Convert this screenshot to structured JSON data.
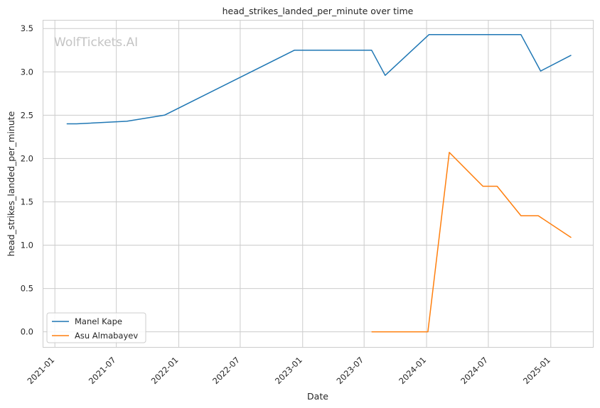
{
  "chart_data": {
    "type": "line",
    "title": "head_strikes_landed_per_minute over time",
    "xlabel": "Date",
    "ylabel": "head_strikes_landed_per_minute",
    "watermark": "WolfTickets.AI",
    "x_axis_type": "date",
    "xlim": [
      "2020-11-26",
      "2025-05-05"
    ],
    "ylim": [
      -0.175,
      3.6
    ],
    "x_ticks": [
      "2021-01",
      "2021-07",
      "2022-01",
      "2022-07",
      "2023-01",
      "2023-07",
      "2024-01",
      "2024-07",
      "2025-01"
    ],
    "y_ticks": [
      "0.0",
      "0.5",
      "1.0",
      "1.5",
      "2.0",
      "2.5",
      "3.0",
      "3.5"
    ],
    "grid": true,
    "legend_position": "lower-left",
    "series": [
      {
        "name": "Manel Kape",
        "color": "#1f77b4",
        "points": [
          {
            "x": "2021-02-06",
            "y": 2.4
          },
          {
            "x": "2021-03-06",
            "y": 2.4
          },
          {
            "x": "2021-08-01",
            "y": 2.43
          },
          {
            "x": "2021-11-20",
            "y": 2.5
          },
          {
            "x": "2022-12-08",
            "y": 3.25
          },
          {
            "x": "2023-07-23",
            "y": 3.25
          },
          {
            "x": "2023-09-01",
            "y": 2.96
          },
          {
            "x": "2024-01-08",
            "y": 3.43
          },
          {
            "x": "2024-10-05",
            "y": 3.43
          },
          {
            "x": "2024-12-02",
            "y": 3.01
          },
          {
            "x": "2025-03-01",
            "y": 3.19
          }
        ]
      },
      {
        "name": "Asu Almabayev",
        "color": "#ff7f0e",
        "points": [
          {
            "x": "2023-07-24",
            "y": 0.0
          },
          {
            "x": "2024-01-05",
            "y": 0.0
          },
          {
            "x": "2024-03-08",
            "y": 2.07
          },
          {
            "x": "2024-06-15",
            "y": 1.68
          },
          {
            "x": "2024-07-27",
            "y": 1.68
          },
          {
            "x": "2024-10-05",
            "y": 1.34
          },
          {
            "x": "2024-11-25",
            "y": 1.34
          },
          {
            "x": "2025-03-01",
            "y": 1.09
          }
        ]
      }
    ]
  }
}
